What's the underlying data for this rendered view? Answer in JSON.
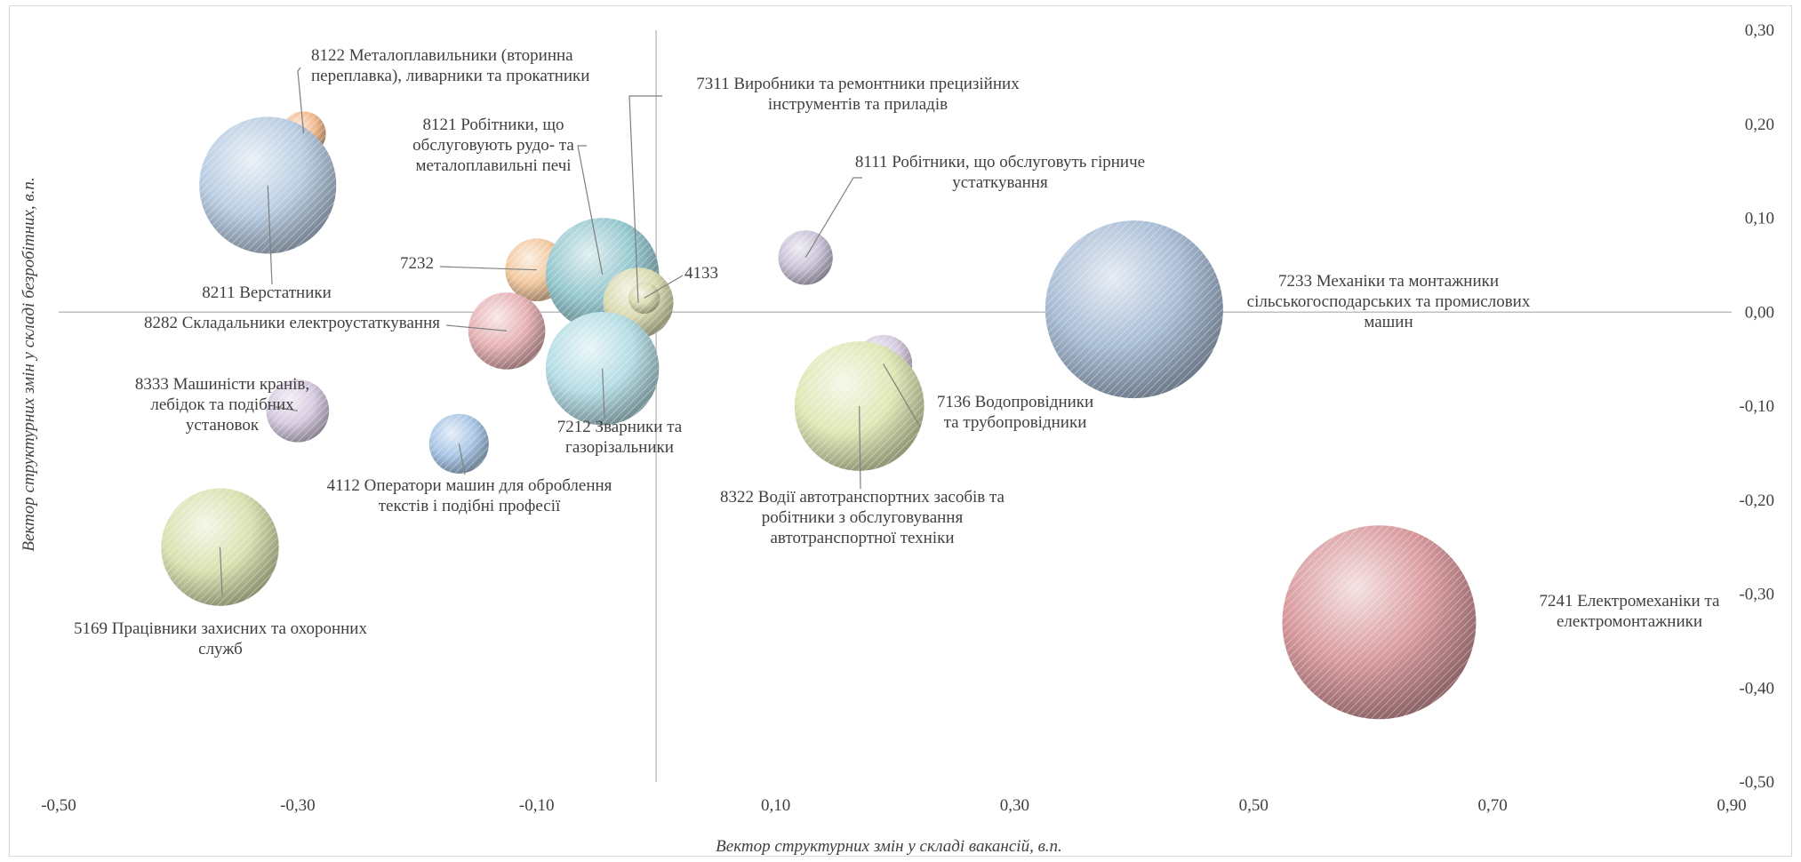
{
  "chart_data": {
    "type": "bubble",
    "xlabel": "Вектор структурних змін у складі вакансій, в.п.",
    "ylabel": "Вектор структурних змін у складі безробітних, в.п.",
    "xlim": [
      -0.5,
      0.9
    ],
    "ylim": [
      -0.5,
      0.3
    ],
    "x_ticks": [
      "-0,50",
      "-0,30",
      "-0,10",
      "0,10",
      "0,30",
      "0,50",
      "0,70",
      "0,90"
    ],
    "y_ticks": [
      "0,30",
      "0,20",
      "0,10",
      "0,00",
      "-0,10",
      "-0,20",
      "-0,30",
      "-0,40",
      "-0,50"
    ],
    "points": [
      {
        "code": "8122",
        "label": [
          "8122 Металоплавильники (вторинна",
          "переплавка), ливарники та прокатники"
        ],
        "x": -0.295,
        "y": 0.19,
        "size": 1.0,
        "color": "#f2b98c"
      },
      {
        "code": "8211",
        "label": [
          "8211 Верстатники"
        ],
        "x": -0.325,
        "y": 0.135,
        "size": 9.5,
        "color": "#b9cde2"
      },
      {
        "code": "7232",
        "label": [
          "7232"
        ],
        "x": -0.1,
        "y": 0.045,
        "size": 2.0,
        "color": "#f2c9a0"
      },
      {
        "code": "8282",
        "label": [
          "8282 Складальники електроустаткування"
        ],
        "x": -0.125,
        "y": -0.02,
        "size": 3.0,
        "color": "#e6b2b5"
      },
      {
        "code": "8121",
        "label": [
          "8121 Робітники, що",
          "обслуговують рудо- та",
          "металоплавильні печі"
        ],
        "x": -0.045,
        "y": 0.04,
        "size": 6.5,
        "color": "#96c8cf"
      },
      {
        "code": "7311",
        "label": [
          "7311 Виробники та ремонтники прецизійних",
          "інструментів та приладів"
        ],
        "x": -0.015,
        "y": 0.01,
        "size": 2.5,
        "color": "#d9dab0"
      },
      {
        "code": "4133",
        "label": [
          "4133"
        ],
        "x": -0.01,
        "y": 0.015,
        "size": 0.5,
        "color": "#d9dab0"
      },
      {
        "code": "7212",
        "label": [
          "7212 Зварники та",
          "газорізальники"
        ],
        "x": -0.045,
        "y": -0.06,
        "size": 6.5,
        "color": "#b5dde5"
      },
      {
        "code": "8333",
        "label": [
          "8333 Машиністи кранів,",
          "лебідок та подібних",
          "установок"
        ],
        "x": -0.3,
        "y": -0.105,
        "size": 2.0,
        "color": "#d6cae0"
      },
      {
        "code": "4112",
        "label": [
          "4112 Оператори машин для оброблення",
          "текстів і подібні професії"
        ],
        "x": -0.165,
        "y": -0.14,
        "size": 1.8,
        "color": "#a9c6e6"
      },
      {
        "code": "5169",
        "label": [
          "5169 Працівники захисних та охоронних",
          "служб"
        ],
        "x": -0.365,
        "y": -0.25,
        "size": 7.0,
        "color": "#d8e2b0"
      },
      {
        "code": "8111",
        "label": [
          "8111 Робітники, що обслуговуть гірниче",
          "устаткування"
        ],
        "x": 0.125,
        "y": 0.058,
        "size": 1.5,
        "color": "#c9c2d8"
      },
      {
        "code": "7233",
        "label": [
          "7233 Механіки та монтажники",
          "сільськогосподарських та промислових",
          "машин"
        ],
        "x": 0.4,
        "y": 0.003,
        "size": 16.0,
        "color": "#a9bdd6"
      },
      {
        "code": "7136",
        "label": [
          "7136 Водопровідники",
          "та трубопровідники"
        ],
        "x": 0.19,
        "y": -0.055,
        "size": 1.7,
        "color": "#d6cae0"
      },
      {
        "code": "8322",
        "label": [
          "8322 Водії автотранспортних засобів та",
          "робітники з обслуговування",
          "автотранспортної техніки"
        ],
        "x": 0.17,
        "y": -0.1,
        "size": 8.5,
        "color": "#dfe7b5"
      },
      {
        "code": "7241",
        "label": [
          "7241 Електромеханіки та",
          "електромонтажники"
        ],
        "x": 0.605,
        "y": -0.33,
        "size": 19.0,
        "color": "#d99a9e"
      }
    ]
  }
}
